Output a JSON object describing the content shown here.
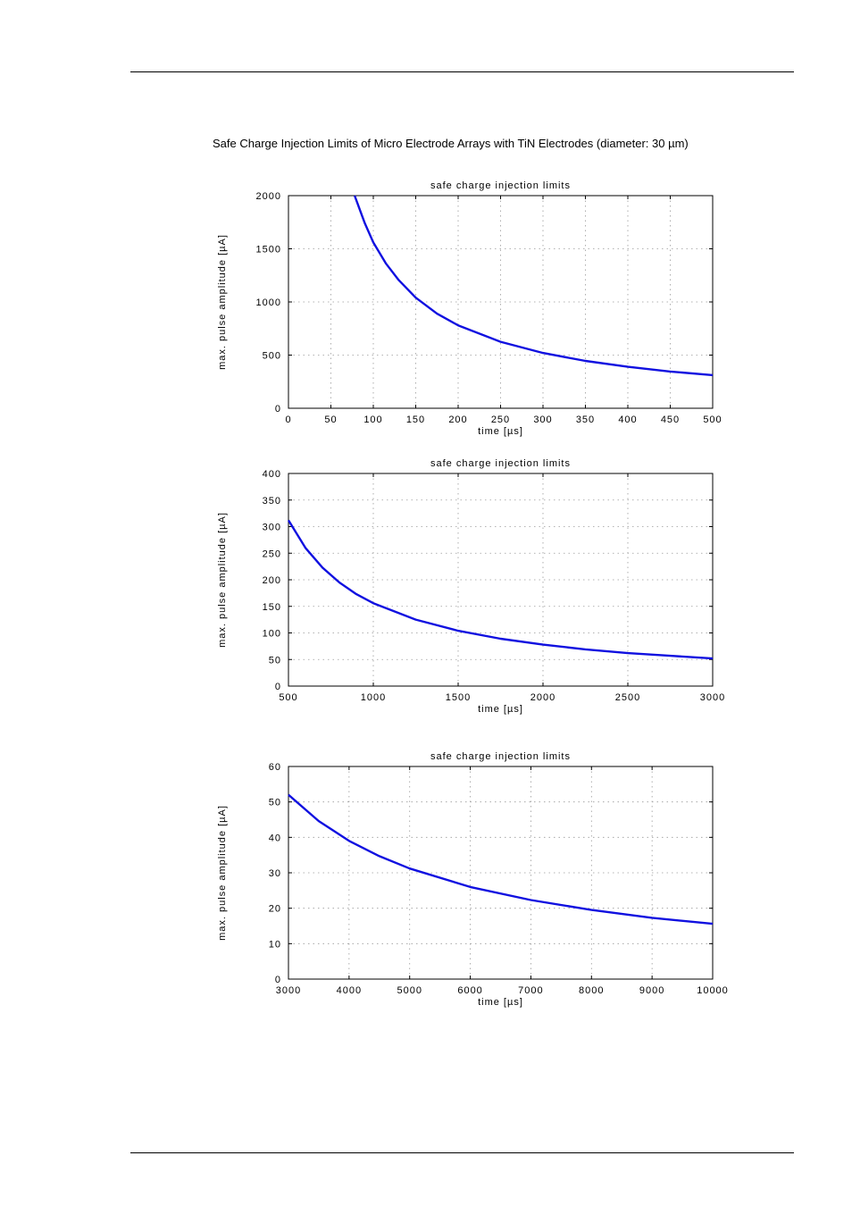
{
  "page": {
    "title": "Safe Charge Injection Limits of Micro Electrode Arrays with TiN Electrodes (diameter: 30 µm)"
  },
  "colors": {
    "curve": "#1010e0",
    "grid": "#9a9a9a",
    "axis": "#000000"
  },
  "chart_data": [
    {
      "type": "line",
      "title": "safe charge injection limits",
      "xlabel": "time [µs]",
      "ylabel": "max. pulse amplitude [µA]",
      "xlim": [
        0,
        500
      ],
      "ylim": [
        0,
        2000
      ],
      "xticks": [
        "0",
        "50",
        "100",
        "150",
        "200",
        "250",
        "300",
        "350",
        "400",
        "450",
        "500"
      ],
      "yticks": [
        "0",
        "500",
        "1000",
        "1500",
        "2000"
      ],
      "grid": true,
      "series": [
        {
          "x": [
            78,
            90,
            100,
            115,
            130,
            150,
            175,
            200,
            250,
            300,
            350,
            400,
            450,
            500
          ],
          "y": [
            2000,
            1740,
            1560,
            1360,
            1205,
            1040,
            890,
            780,
            625,
            520,
            445,
            390,
            345,
            312
          ]
        }
      ]
    },
    {
      "type": "line",
      "title": "safe charge injection limits",
      "xlabel": "time [µs]",
      "ylabel": "max. pulse amplitude [µA]",
      "xlim": [
        500,
        3000
      ],
      "ylim": [
        0,
        400
      ],
      "xticks": [
        "500",
        "1000",
        "1500",
        "2000",
        "2500",
        "3000"
      ],
      "yticks": [
        "0",
        "50",
        "100",
        "150",
        "200",
        "250",
        "300",
        "350",
        "400"
      ],
      "grid": true,
      "series": [
        {
          "x": [
            500,
            600,
            700,
            800,
            900,
            1000,
            1250,
            1500,
            1750,
            2000,
            2250,
            2500,
            2750,
            3000
          ],
          "y": [
            312,
            260,
            223,
            195,
            173,
            156,
            125,
            104,
            89,
            78,
            69,
            62,
            57,
            52
          ]
        }
      ]
    },
    {
      "type": "line",
      "title": "safe charge injection limits",
      "xlabel": "time [µs]",
      "ylabel": "max. pulse amplitude [µA]",
      "xlim": [
        3000,
        10000
      ],
      "ylim": [
        0,
        60
      ],
      "xticks": [
        "3000",
        "4000",
        "5000",
        "6000",
        "7000",
        "8000",
        "9000",
        "10000"
      ],
      "yticks": [
        "0",
        "10",
        "20",
        "30",
        "40",
        "50",
        "60"
      ],
      "grid": true,
      "series": [
        {
          "x": [
            3000,
            3500,
            4000,
            4500,
            5000,
            6000,
            7000,
            8000,
            9000,
            10000
          ],
          "y": [
            52,
            44.6,
            39,
            34.7,
            31.2,
            26,
            22.3,
            19.5,
            17.3,
            15.6
          ]
        }
      ]
    }
  ]
}
